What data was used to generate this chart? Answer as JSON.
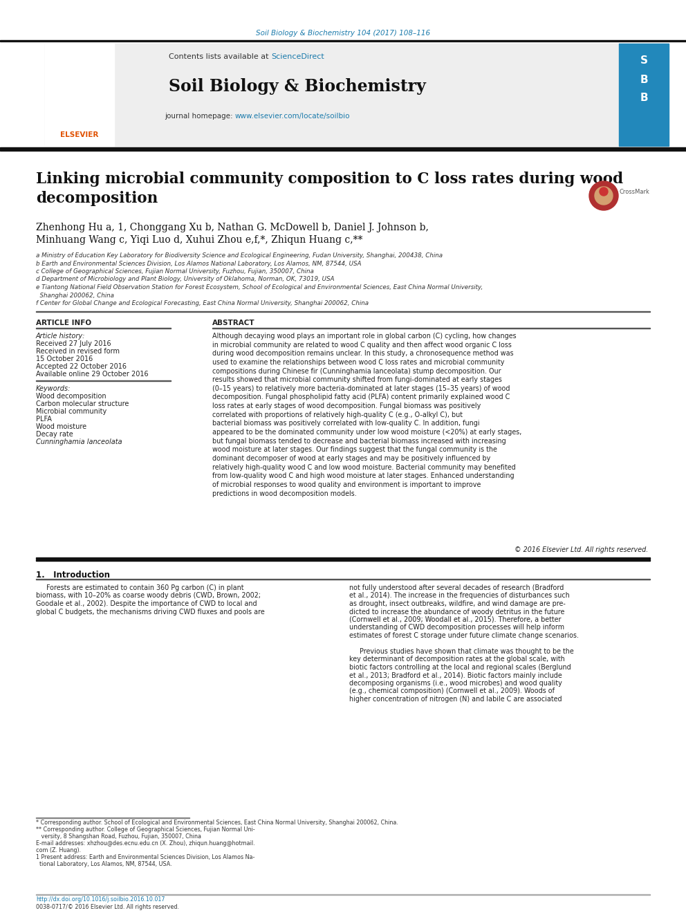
{
  "page_bg": "#ffffff",
  "top_journal_ref": "Soil Biology & Biochemistry 104 (2017) 108–116",
  "top_journal_ref_color": "#1a7aab",
  "header_bg": "#eeeeee",
  "header_text": "Contents lists available at ",
  "header_sciencedirect": "ScienceDirect",
  "header_sciencedirect_color": "#1a7aab",
  "journal_title": "Soil Biology & Biochemistry",
  "journal_homepage_prefix": "journal homepage: ",
  "journal_homepage_url": "www.elsevier.com/locate/soilbio",
  "journal_homepage_color": "#1a7aab",
  "article_title": "Linking microbial community composition to C loss rates during wood\ndecomposition",
  "authors_line1": "Zhenhong Hu a, 1, Chonggang Xu b, Nathan G. McDowell b, Daniel J. Johnson b,",
  "authors_line2": "Minhuang Wang c, Yiqi Luo d, Xuhui Zhou e,f,*, Zhiqun Huang c,**",
  "affil_a": "a Ministry of Education Key Laboratory for Biodiversity Science and Ecological Engineering, Fudan University, Shanghai, 200438, China",
  "affil_b": "b Earth and Environmental Sciences Division, Los Alamos National Laboratory, Los Alamos, NM, 87544, USA",
  "affil_c": "c College of Geographical Sciences, Fujian Normal University, Fuzhou, Fujian, 350007, China",
  "affil_d": "d Department of Microbiology and Plant Biology, University of Oklahoma, Norman, OK, 73019, USA",
  "affil_e1": "e Tiantong National Field Observation Station for Forest Ecosystem, School of Ecological and Environmental Sciences, East China Normal University,",
  "affil_e2": "  Shanghai 200062, China",
  "affil_f": "f Center for Global Change and Ecological Forecasting, East China Normal University, Shanghai 200062, China",
  "article_info_title": "ARTICLE INFO",
  "article_history_label": "Article history:",
  "received_label": "Received 27 July 2016",
  "revised_label1": "Received in revised form",
  "revised_label2": "15 October 2016",
  "accepted_label": "Accepted 22 October 2016",
  "available_label": "Available online 29 October 2016",
  "keywords_label": "Keywords:",
  "keywords": [
    "Wood decomposition",
    "Carbon molecular structure",
    "Microbial community",
    "PLFA",
    "Wood moisture",
    "Decay rate",
    "Cunninghamia lanceolata"
  ],
  "keywords_italic_last": true,
  "abstract_title": "ABSTRACT",
  "abstract_text": "Although decaying wood plays an important role in global carbon (C) cycling, how changes in microbial community are related to wood C quality and then affect wood organic C loss during wood decomposition remains unclear. In this study, a chronosequence method was used to examine the relationships between wood C loss rates and microbial community compositions during Chinese fir (Cunninghamia lanceolata) stump decomposition. Our results showed that microbial community shifted from fungi-dominated at early stages (0–15 years) to relatively more bacteria-dominated at later stages (15–35 years) of wood decomposition. Fungal phospholipid fatty acid (PLFA) content primarily explained wood C loss rates at early stages of wood decomposition. Fungal biomass was positively correlated with proportions of relatively high-quality C (e.g., O-alkyl C), but bacterial biomass was positively correlated with low-quality C. In addition, fungi appeared to be the dominated community under low wood moisture (<20%) at early stages, but fungal biomass tended to decrease and bacterial biomass increased with increasing wood moisture at later stages. Our findings suggest that the fungal community is the dominant decomposer of wood at early stages and may be positively influenced by relatively high-quality wood C and low wood moisture. Bacterial community may benefited from low-quality wood C and high wood moisture at later stages. Enhanced understanding of microbial responses to wood quality and environment is important to improve predictions in wood decomposition models.",
  "copyright_text": "© 2016 Elsevier Ltd. All rights reserved.",
  "intro_title": "1.   Introduction",
  "intro_col1_lines": [
    "     Forests are estimated to contain 360 Pg carbon (C) in plant",
    "biomass, with 10–20% as coarse woody debris (CWD, Brown, 2002;",
    "Goodale et al., 2002). Despite the importance of CWD to local and",
    "global C budgets, the mechanisms driving CWD fluxes and pools are"
  ],
  "intro_col2_lines": [
    "not fully understood after several decades of research (Bradford",
    "et al., 2014). The increase in the frequencies of disturbances such",
    "as drought, insect outbreaks, wildfire, and wind damage are pre-",
    "dicted to increase the abundance of woody detritus in the future",
    "(Cornwell et al., 2009; Woodall et al., 2015). Therefore, a better",
    "understanding of CWD decomposition processes will help inform",
    "estimates of forest C storage under future climate change scenarios.",
    "",
    "     Previous studies have shown that climate was thought to be the",
    "key determinant of decomposition rates at the global scale, with",
    "biotic factors controlling at the local and regional scales (Berglund",
    "et al., 2013; Bradford et al., 2014). Biotic factors mainly include",
    "decomposing organisms (i.e., wood microbes) and wood quality",
    "(e.g., chemical composition) (Cornwell et al., 2009). Woods of",
    "higher concentration of nitrogen (N) and labile C are associated"
  ],
  "footnote_star1": "* Corresponding author. School of Ecological and Environmental Sciences, East China Normal University, Shanghai 200062, China.",
  "footnote_star2": "** Corresponding author. College of Geographical Sciences, Fujian Normal Uni-",
  "footnote_star2b": "   versity, 8 Shangshan Road, Fuzhou, Fujian, 350007, China",
  "footnote_email1": "E-mail addresses: xhzhou@des.ecnu.edu.cn (X. Zhou), zhiqun.huang@hotmail.",
  "footnote_email2": "com (Z. Huang).",
  "footnote_present": "1 Present address: Earth and Environmental Sciences Division, Los Alamos Na-",
  "footnote_present2": "  tional Laboratory, Los Alamos, NM, 87544, USA.",
  "doi_text": "http://dx.doi.org/10.1016/j.soilbio.2016.10.017",
  "issn_text": "0038-0717/© 2016 Elsevier Ltd. All rights reserved."
}
